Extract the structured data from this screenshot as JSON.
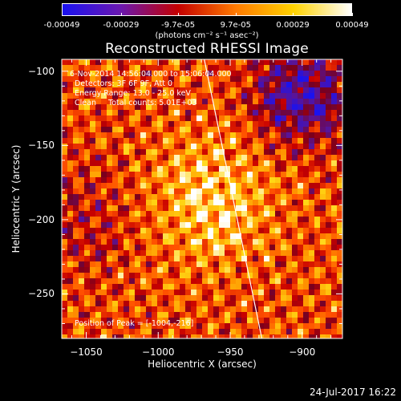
{
  "colorbar": {
    "tick_labels": [
      "-0.00049",
      "-0.00029",
      "-9.7e-05",
      "9.7e-05",
      "0.00029",
      "0.00049"
    ],
    "tick_values": [
      -0.00049,
      -0.00029,
      -9.7e-05,
      9.7e-05,
      0.00029,
      0.00049
    ],
    "unit_label": "(photons cm⁻² s⁻¹ asec⁻²)",
    "colors": [
      "#1a12f0",
      "#6a18b0",
      "#c40000",
      "#ff7a00",
      "#ffd200",
      "#ffffff"
    ]
  },
  "chart_data": {
    "type": "heatmap",
    "title": "Reconstructed RHESSI Image",
    "xlabel": "Heliocentric X (arcsec)",
    "ylabel": "Heliocentric Y (arcsec)",
    "xlim": [
      -1067,
      -872
    ],
    "ylim": [
      -280,
      -92
    ],
    "x_ticks": [
      -1050,
      -1000,
      -950,
      -900
    ],
    "y_ticks": [
      -100,
      -150,
      -200,
      -250
    ],
    "x_tick_labels": [
      "−1050",
      "−1000",
      "−950",
      "−900"
    ],
    "y_tick_labels": [
      "−100",
      "−150",
      "−200",
      "−250"
    ],
    "value_range": [
      -0.00049,
      0.00049
    ],
    "limb_line": [
      [
        -968,
        -92
      ],
      [
        -928,
        -280
      ]
    ],
    "peak_position": [
      -1004,
      -216
    ],
    "annotations": [
      "6-Nov-2014 14:56:04.000 to 15:06:04.000",
      "Detectors: 3F 6F 9F, Att 0",
      "Energy Range: 13.0 - 25.0 keV",
      "Clean     Total counts: 5.01E+03",
      "Position of Peak = [-1004,-216]"
    ]
  },
  "footer": "24-Jul-2017 16:22"
}
